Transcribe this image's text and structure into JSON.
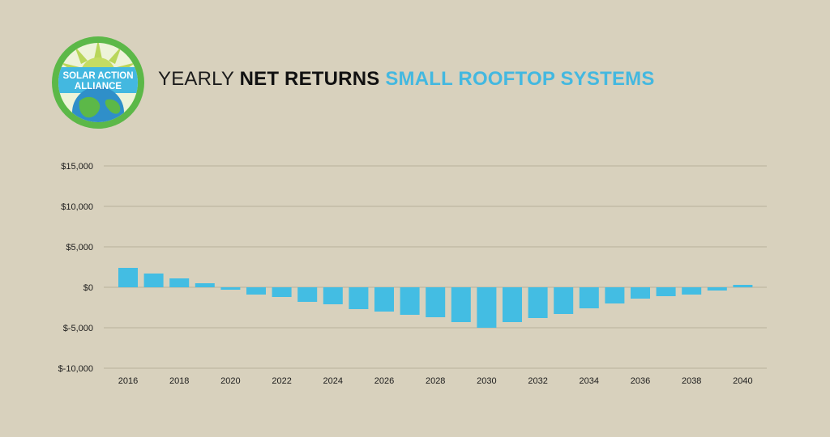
{
  "brand": {
    "logo_line1": "SOLAR ACTION",
    "logo_line2": "ALLIANCE",
    "logo_colors": {
      "ring": "#5cb848",
      "sun": "#b9d65a",
      "band": "#43b8e0",
      "land": "#5cb848",
      "ocean": "#2f8fc9"
    }
  },
  "header": {
    "title_part1": "YEARLY ",
    "title_part2": "NET RETURNS",
    "title_part3": " SMALL ROOFTOP SYSTEMS"
  },
  "colors": {
    "bar": "#43bde3",
    "grid": "#b8b19c",
    "text": "#1c1c1c"
  },
  "chart_data": {
    "type": "bar",
    "title": "YEARLY NET RETURNS SMALL ROOFTOP SYSTEMS",
    "xlabel": "",
    "ylabel": "",
    "ylim": [
      -10000,
      15000
    ],
    "yticks": [
      15000,
      10000,
      5000,
      0,
      -5000,
      -10000
    ],
    "ytick_labels": [
      "$15,000",
      "$10,000",
      "$5,000",
      "$0",
      "$-5,000",
      "$-10,000"
    ],
    "categories": [
      "2016",
      "2017",
      "2018",
      "2019",
      "2020",
      "2021",
      "2022",
      "2023",
      "2024",
      "2025",
      "2026",
      "2027",
      "2028",
      "2029",
      "2030",
      "2031",
      "2032",
      "2033",
      "2034",
      "2035",
      "2036",
      "2037",
      "2038",
      "2039",
      "2040"
    ],
    "xtick_labels": [
      "2016",
      "",
      "2018",
      "",
      "2020",
      "",
      "2022",
      "",
      "2024",
      "",
      "2026",
      "",
      "2028",
      "",
      "2030",
      "",
      "2032",
      "",
      "2034",
      "",
      "2036",
      "",
      "2038",
      "",
      "2040"
    ],
    "values": [
      2400,
      1700,
      1100,
      500,
      -300,
      -900,
      -1200,
      -1800,
      -2100,
      -2700,
      -3000,
      -3400,
      -3700,
      -4300,
      -5000,
      -4300,
      -3800,
      -3300,
      -2600,
      -2000,
      -1400,
      -1100,
      -900,
      -400,
      300
    ],
    "grid": true,
    "legend": "none"
  }
}
